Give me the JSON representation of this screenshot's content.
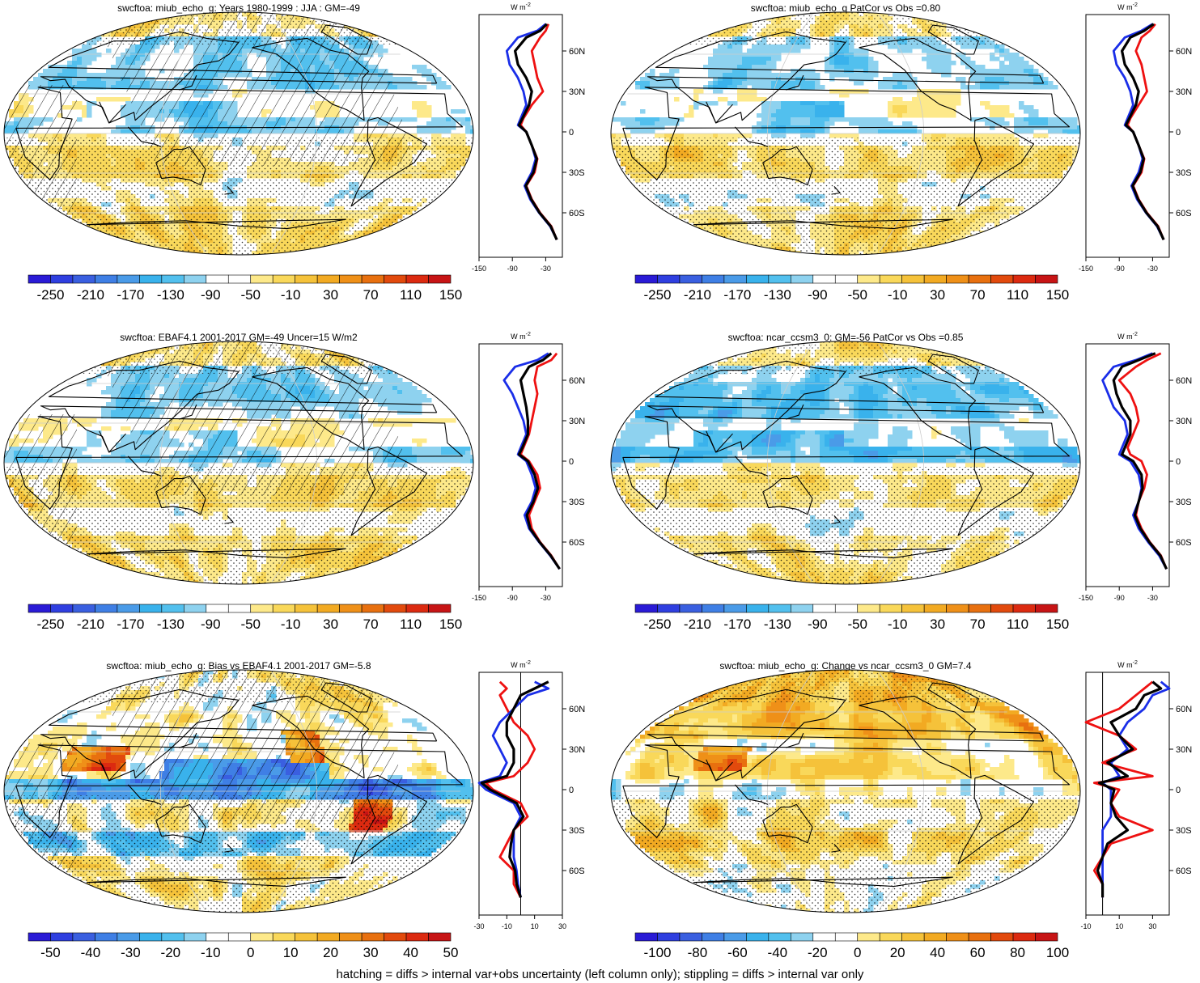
{
  "footer": "hatching = diffs > internal var+obs uncertainty (left column only); stippling = diffs > internal var only",
  "zonal_unit": "W m",
  "zonal_unit_exp": "-2",
  "lat_labels": [
    "60N",
    "30N",
    "0",
    "30S",
    "60S"
  ],
  "colors": {
    "scale": [
      "#2a1bd6",
      "#2f3fe0",
      "#3a5fe0",
      "#3f7fe5",
      "#4a9be8",
      "#39b2ec",
      "#52c0ee",
      "#8ed2ef",
      "#ffffff",
      "#ffffff",
      "#fde98a",
      "#f9d85a",
      "#f5c23a",
      "#f2aa22",
      "#ef9018",
      "#e8700f",
      "#e24a0d",
      "#dc2a10",
      "#c71415"
    ],
    "red": "#ee1111",
    "blue": "#1a2ee8",
    "black": "#000000"
  },
  "panels": [
    {
      "id": "p1",
      "title": "swcftoa: miub_echo_g: Years 1980-1999 : JJA : GM=-49",
      "fill": "mean",
      "hatch": true,
      "cbar_labels": [
        "-250",
        "-210",
        "-170",
        "-130",
        "-90",
        "-50",
        "-10",
        "30",
        "70",
        "110",
        "150"
      ],
      "chart_data": {
        "type": "line",
        "xlim": [
          -150,
          0
        ],
        "xticks": [
          -150,
          -90,
          -30
        ],
        "zero_line": false,
        "lat": [
          80,
          75,
          70,
          60,
          50,
          40,
          30,
          20,
          10,
          5,
          0,
          -10,
          -20,
          -30,
          -40,
          -50,
          -60,
          -70,
          -80
        ],
        "series": [
          {
            "color": "red",
            "values": [
              -25,
              -30,
              -40,
              -55,
              -50,
              -45,
              -35,
              -55,
              -70,
              -75,
              -65,
              -55,
              -45,
              -50,
              -65,
              -55,
              -40,
              -20,
              -10
            ]
          },
          {
            "color": "blue",
            "values": [
              -30,
              -45,
              -80,
              -100,
              -95,
              -80,
              -70,
              -65,
              -75,
              -80,
              -65,
              -55,
              -48,
              -55,
              -68,
              -58,
              -42,
              -22,
              -10
            ]
          },
          {
            "color": "black",
            "values": [
              -28,
              -40,
              -65,
              -85,
              -80,
              -65,
              -55,
              -60,
              -72,
              -78,
              -65,
              -55,
              -46,
              -52,
              -66,
              -56,
              -41,
              -21,
              -10
            ]
          }
        ]
      }
    },
    {
      "id": "p2",
      "title": "swcftoa: miub_echo_g PatCor vs Obs =0.80",
      "fill": "mean",
      "hatch": false,
      "cbar_labels": [
        "-250",
        "-210",
        "-170",
        "-130",
        "-90",
        "-50",
        "-10",
        "30",
        "70",
        "110",
        "150"
      ],
      "chart_data": {
        "type": "line",
        "xlim": [
          -150,
          0
        ],
        "xticks": [
          -150,
          -90,
          -30
        ],
        "zero_line": false,
        "lat": [
          80,
          75,
          70,
          60,
          50,
          40,
          30,
          20,
          10,
          5,
          0,
          -10,
          -20,
          -30,
          -40,
          -50,
          -60,
          -70,
          -80
        ],
        "series": [
          {
            "color": "red",
            "values": [
              -25,
              -35,
              -50,
              -60,
              -50,
              -45,
              -40,
              -55,
              -70,
              -75,
              -65,
              -55,
              -45,
              -50,
              -65,
              -55,
              -40,
              -20,
              -10
            ]
          },
          {
            "color": "blue",
            "values": [
              -30,
              -50,
              -80,
              -100,
              -95,
              -80,
              -70,
              -65,
              -75,
              -80,
              -65,
              -55,
              -48,
              -55,
              -68,
              -58,
              -42,
              -22,
              -10
            ]
          },
          {
            "color": "black",
            "values": [
              -28,
              -45,
              -70,
              -85,
              -80,
              -65,
              -55,
              -60,
              -72,
              -78,
              -65,
              -55,
              -46,
              -52,
              -66,
              -56,
              -41,
              -21,
              -10
            ]
          }
        ]
      }
    },
    {
      "id": "p3",
      "title": "swcftoa: EBAF4.1 2001-2017 GM=-49 Uncer=15 W/m2",
      "fill": "obs",
      "hatch": true,
      "cbar_labels": [
        "-250",
        "-210",
        "-170",
        "-130",
        "-90",
        "-50",
        "-10",
        "30",
        "70",
        "110",
        "150"
      ],
      "chart_data": {
        "type": "line",
        "xlim": [
          -150,
          0
        ],
        "xticks": [
          -150,
          -90,
          -30
        ],
        "zero_line": false,
        "lat": [
          80,
          75,
          70,
          60,
          50,
          40,
          30,
          20,
          10,
          5,
          0,
          -10,
          -20,
          -30,
          -40,
          -50,
          -60,
          -70,
          -80
        ],
        "series": [
          {
            "color": "red",
            "values": [
              -10,
              -20,
              -45,
              -50,
              -45,
              -50,
              -55,
              -60,
              -70,
              -75,
              -60,
              -45,
              -40,
              -50,
              -60,
              -55,
              -40,
              -20,
              -5
            ]
          },
          {
            "color": "blue",
            "values": [
              -25,
              -45,
              -85,
              -105,
              -90,
              -80,
              -70,
              -65,
              -75,
              -80,
              -65,
              -55,
              -48,
              -55,
              -68,
              -60,
              -42,
              -22,
              -5
            ]
          },
          {
            "color": "black",
            "values": [
              -20,
              -35,
              -60,
              -75,
              -70,
              -65,
              -62,
              -62,
              -72,
              -78,
              -62,
              -50,
              -44,
              -52,
              -64,
              -58,
              -41,
              -21,
              -5
            ]
          }
        ]
      }
    },
    {
      "id": "p4",
      "title": "swcftoa: ncar_ccsm3_0: GM=-56 PatCor vs Obs =0.85",
      "fill": "model2",
      "hatch": false,
      "cbar_labels": [
        "-250",
        "-210",
        "-170",
        "-130",
        "-90",
        "-50",
        "-10",
        "30",
        "70",
        "110",
        "150"
      ],
      "chart_data": {
        "type": "line",
        "xlim": [
          -150,
          0
        ],
        "xticks": [
          -150,
          -90,
          -30
        ],
        "zero_line": false,
        "lat": [
          80,
          75,
          70,
          60,
          50,
          40,
          30,
          20,
          10,
          5,
          0,
          -10,
          -20,
          -30,
          -40,
          -50,
          -60,
          -70,
          -80
        ],
        "series": [
          {
            "color": "red",
            "values": [
              -15,
              -40,
              -60,
              -90,
              -70,
              -60,
              -55,
              -65,
              -75,
              -70,
              -50,
              -40,
              -45,
              -55,
              -60,
              -50,
              -35,
              -15,
              -5
            ]
          },
          {
            "color": "blue",
            "values": [
              -30,
              -60,
              -100,
              -120,
              -110,
              -100,
              -80,
              -75,
              -85,
              -90,
              -70,
              -55,
              -50,
              -55,
              -65,
              -55,
              -38,
              -18,
              -5
            ]
          },
          {
            "color": "black",
            "values": [
              -25,
              -55,
              -85,
              -100,
              -95,
              -85,
              -70,
              -70,
              -80,
              -85,
              -65,
              -50,
              -48,
              -55,
              -62,
              -52,
              -36,
              -16,
              -5
            ]
          }
        ]
      }
    },
    {
      "id": "p5",
      "title": "swcftoa: miub_echo_g: Bias vs EBAF4.1 2001-2017 GM=-5.8",
      "fill": "bias",
      "hatch": true,
      "cbar_labels": [
        "-50",
        "-40",
        "-30",
        "-20",
        "-10",
        "0",
        "10",
        "20",
        "30",
        "40",
        "50"
      ],
      "chart_data": {
        "type": "line",
        "xlim": [
          -30,
          30
        ],
        "xticks": [
          -30,
          -10,
          10,
          30
        ],
        "zero_line": true,
        "lat": [
          80,
          75,
          70,
          60,
          50,
          40,
          30,
          20,
          10,
          5,
          0,
          -10,
          -20,
          -30,
          -40,
          -50,
          -60,
          -70,
          -80
        ],
        "series": [
          {
            "color": "red",
            "values": [
              -15,
              -10,
              -15,
              -10,
              -5,
              5,
              10,
              5,
              -5,
              -25,
              -20,
              0,
              5,
              -5,
              -10,
              -15,
              -5,
              -5,
              0
            ]
          },
          {
            "color": "blue",
            "values": [
              10,
              20,
              5,
              -5,
              -15,
              -20,
              -15,
              -10,
              -15,
              -30,
              -25,
              -5,
              0,
              -5,
              -5,
              -5,
              -3,
              -2,
              0
            ]
          },
          {
            "color": "black",
            "values": [
              20,
              10,
              0,
              -5,
              -10,
              -10,
              -5,
              -5,
              -10,
              -28,
              -22,
              -3,
              2,
              -5,
              -7,
              -8,
              -4,
              -3,
              0
            ]
          }
        ]
      }
    },
    {
      "id": "p6",
      "title": "swcftoa: miub_echo_g: Change vs ncar_ccsm3_0 GM=7.4",
      "fill": "change",
      "hatch": false,
      "cbar_labels": [
        "-100",
        "-80",
        "-60",
        "-40",
        "-20",
        "0",
        "20",
        "40",
        "60",
        "80",
        "100"
      ],
      "chart_data": {
        "type": "line",
        "xlim": [
          -10,
          40
        ],
        "xticks": [
          -10,
          10,
          30
        ],
        "zero_line": true,
        "lat": [
          80,
          75,
          70,
          60,
          50,
          40,
          30,
          20,
          10,
          5,
          0,
          -10,
          -20,
          -30,
          -40,
          -50,
          -60,
          -70,
          -80
        ],
        "series": [
          {
            "color": "red",
            "values": [
              30,
              25,
              20,
              10,
              -10,
              10,
              20,
              0,
              30,
              -5,
              10,
              5,
              10,
              30,
              5,
              0,
              -5,
              0,
              0
            ]
          },
          {
            "color": "blue",
            "values": [
              35,
              40,
              30,
              25,
              15,
              10,
              15,
              5,
              10,
              0,
              5,
              5,
              5,
              0,
              0,
              0,
              0,
              0,
              0
            ]
          },
          {
            "color": "black",
            "values": [
              30,
              35,
              25,
              20,
              5,
              10,
              18,
              3,
              15,
              -2,
              7,
              5,
              8,
              15,
              3,
              0,
              -3,
              0,
              0
            ]
          }
        ]
      }
    }
  ]
}
